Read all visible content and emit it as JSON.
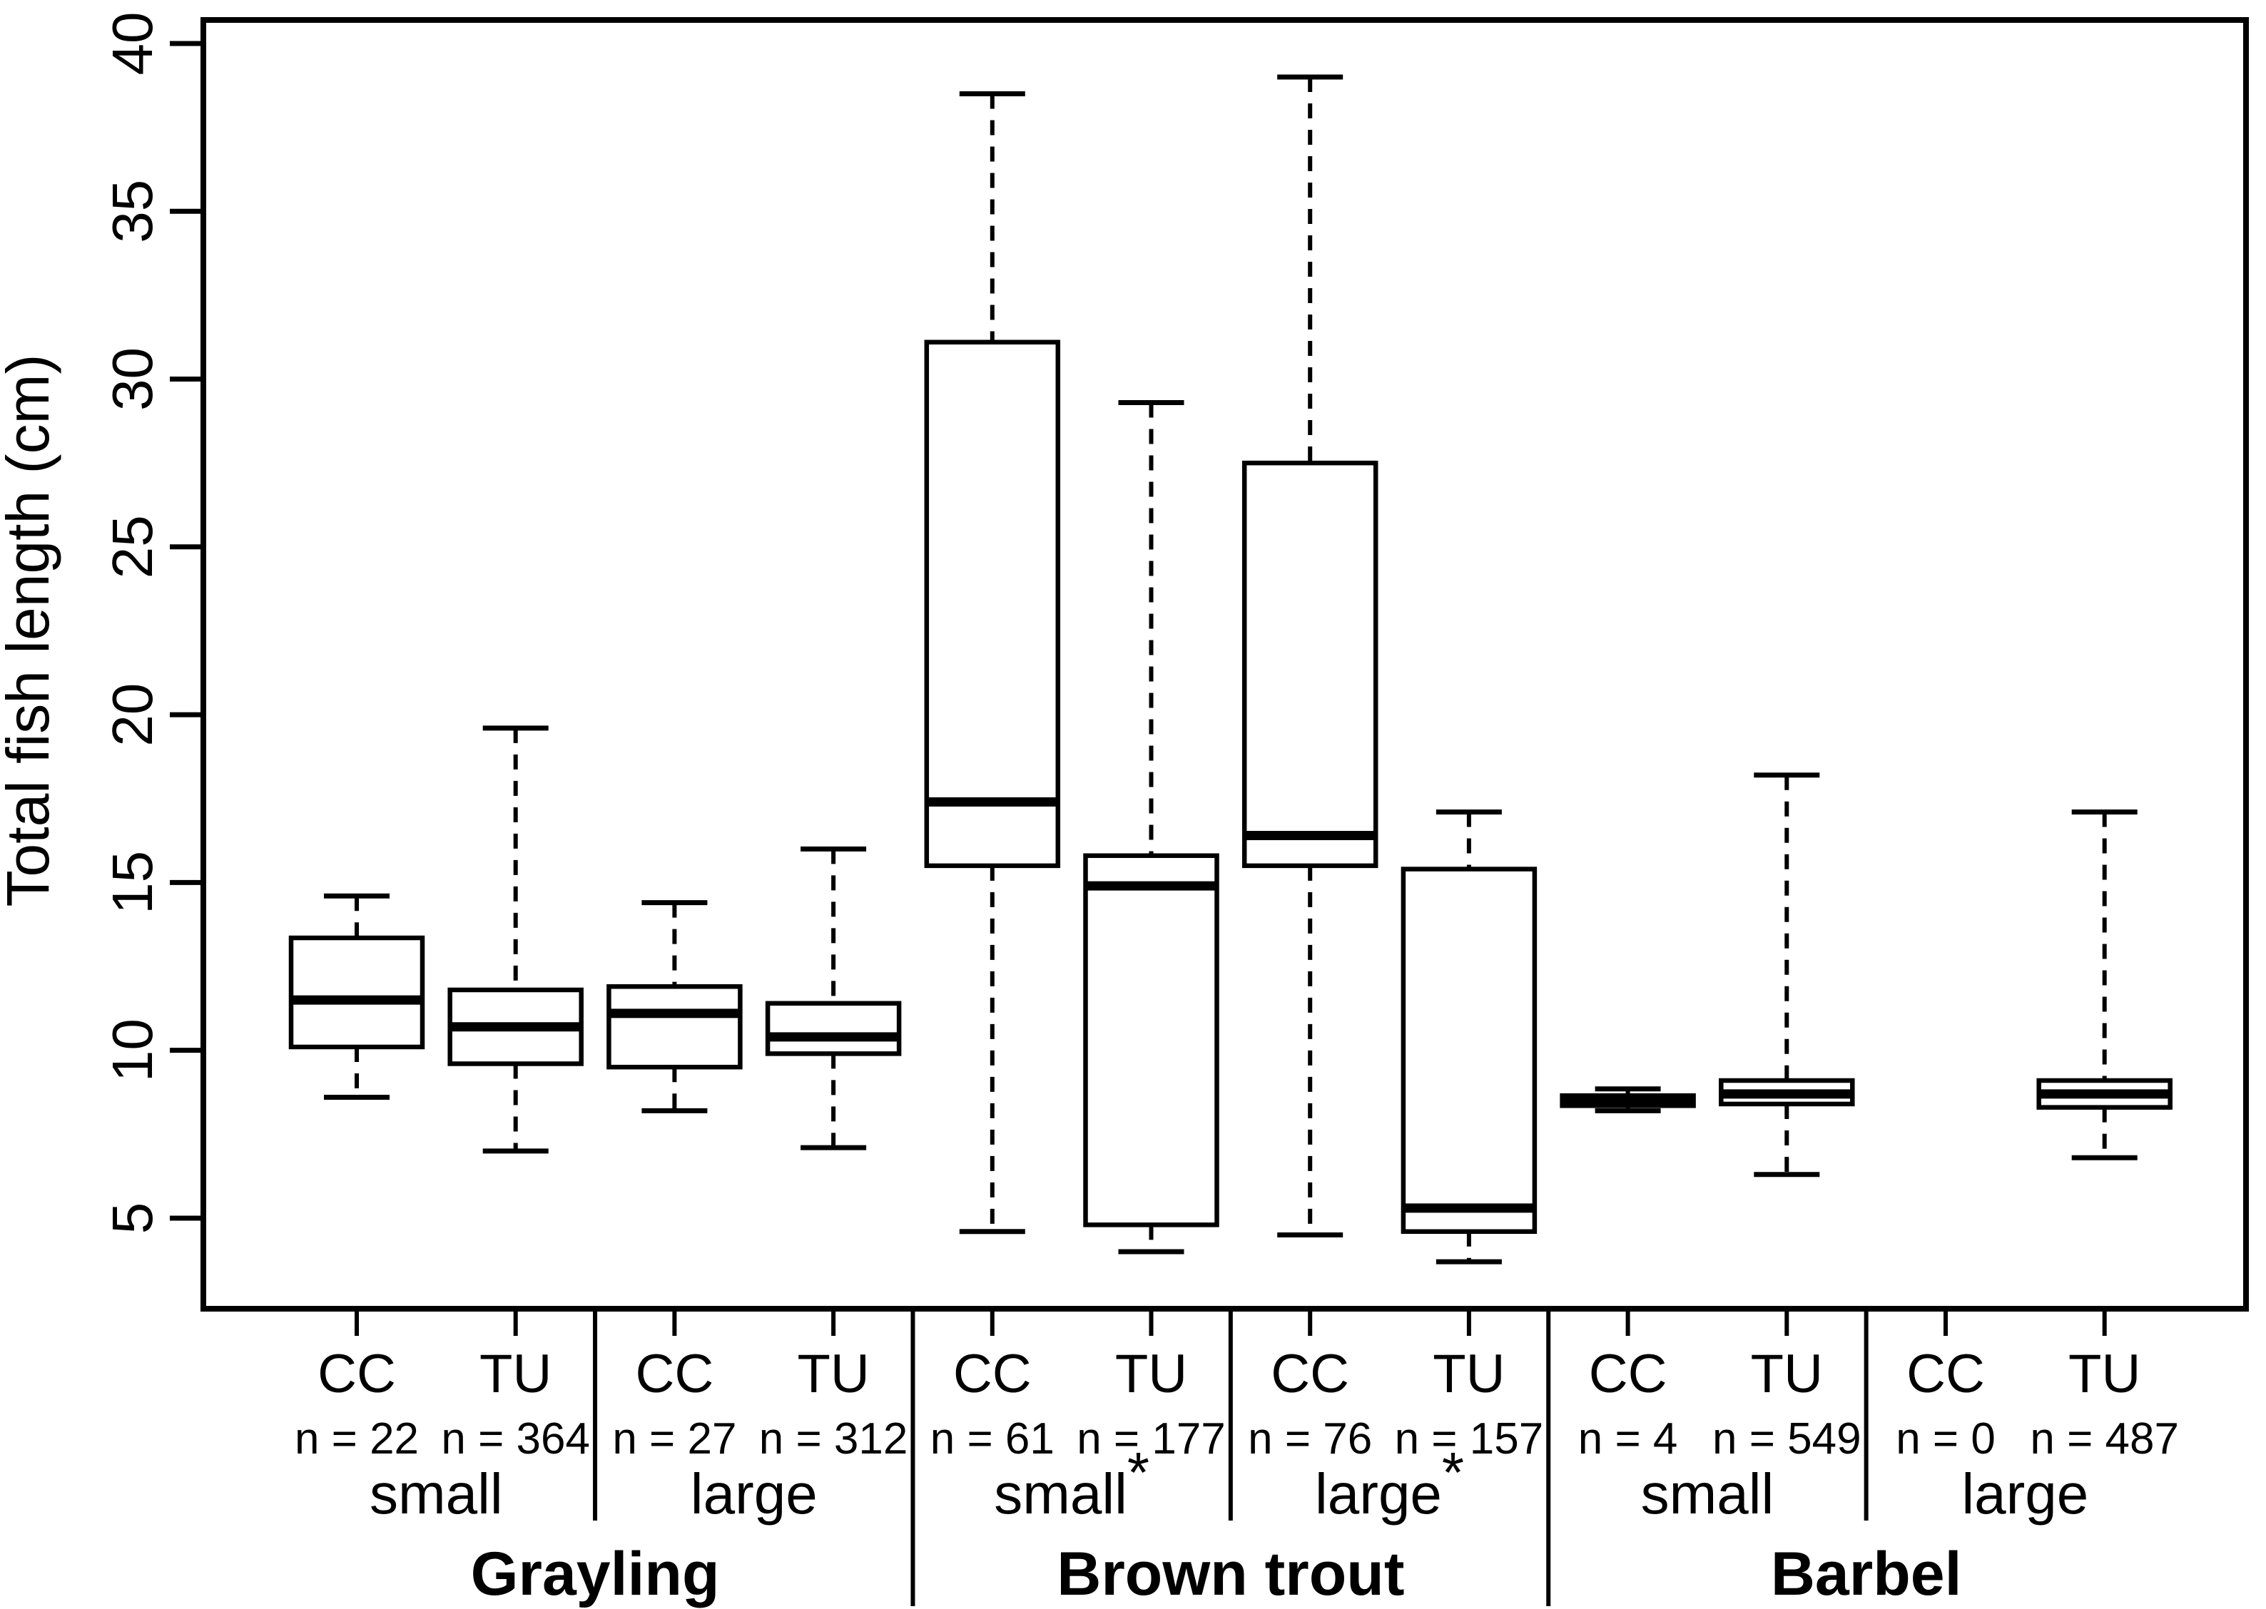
{
  "chart_data": {
    "type": "boxplot",
    "title": "",
    "xlabel": "",
    "ylabel": "Total fish length (cm)",
    "ylim": [
      2.3,
      40.7
    ],
    "yticks": [
      5,
      10,
      15,
      20,
      25,
      30,
      35,
      40
    ],
    "grid": false,
    "legend": null,
    "colors": {
      "foreground": "#000000",
      "background": "#ffffff"
    },
    "columns": [
      {
        "species": "Grayling",
        "size": "small",
        "treatment": "CC",
        "n_label": "n = 22",
        "n": 22,
        "stats": {
          "lo": 8.6,
          "q1": 10.1,
          "med": 11.5,
          "q3": 13.35,
          "hi": 14.6
        }
      },
      {
        "species": "Grayling",
        "size": "small",
        "treatment": "TU",
        "n_label": "n = 364",
        "n": 364,
        "stats": {
          "lo": 7.0,
          "q1": 9.6,
          "med": 10.7,
          "q3": 11.8,
          "hi": 19.6
        }
      },
      {
        "species": "Grayling",
        "size": "large",
        "treatment": "CC",
        "n_label": "n = 27",
        "n": 27,
        "stats": {
          "lo": 8.2,
          "q1": 9.5,
          "med": 11.1,
          "q3": 11.9,
          "hi": 14.4
        }
      },
      {
        "species": "Grayling",
        "size": "large",
        "treatment": "TU",
        "n_label": "n = 312",
        "n": 312,
        "stats": {
          "lo": 7.1,
          "q1": 9.9,
          "med": 10.4,
          "q3": 11.4,
          "hi": 16.0
        }
      },
      {
        "species": "Brown trout",
        "size": "small",
        "treatment": "CC",
        "n_label": "n = 61",
        "n": 61,
        "stats": {
          "lo": 4.6,
          "q1": 15.5,
          "med": 17.4,
          "q3": 31.1,
          "hi": 38.5
        }
      },
      {
        "species": "Brown trout",
        "size": "small",
        "treatment": "TU",
        "n_label": "n = 177",
        "n": 177,
        "stats": {
          "lo": 4.0,
          "q1": 4.8,
          "med": 14.9,
          "q3": 15.8,
          "hi": 29.3
        }
      },
      {
        "species": "Brown trout",
        "size": "large",
        "treatment": "CC",
        "n_label": "n = 76",
        "n": 76,
        "stats": {
          "lo": 4.5,
          "q1": 15.5,
          "med": 16.4,
          "q3": 27.5,
          "hi": 39.0
        }
      },
      {
        "species": "Brown trout",
        "size": "large",
        "treatment": "TU",
        "n_label": "n = 157",
        "n": 157,
        "stats": {
          "lo": 3.7,
          "q1": 4.6,
          "med": 5.3,
          "q3": 15.4,
          "hi": 17.1
        }
      },
      {
        "species": "Barbel",
        "size": "small",
        "treatment": "CC",
        "n_label": "n = 4",
        "n": 4,
        "stats": {
          "lo": 8.2,
          "q1": 8.35,
          "med": 8.5,
          "q3": 8.65,
          "hi": 8.85
        }
      },
      {
        "species": "Barbel",
        "size": "small",
        "treatment": "TU",
        "n_label": "n = 549",
        "n": 549,
        "stats": {
          "lo": 6.3,
          "q1": 8.4,
          "med": 8.7,
          "q3": 9.1,
          "hi": 18.2
        }
      },
      {
        "species": "Barbel",
        "size": "large",
        "treatment": "CC",
        "n_label": "n = 0",
        "n": 0,
        "stats": null
      },
      {
        "species": "Barbel",
        "size": "large",
        "treatment": "TU",
        "n_label": "n = 487",
        "n": 487,
        "stats": {
          "lo": 6.8,
          "q1": 8.3,
          "med": 8.7,
          "q3": 9.1,
          "hi": 17.1
        }
      }
    ],
    "size_groups": [
      {
        "label": "small",
        "star": "",
        "col_span": [
          0,
          1
        ]
      },
      {
        "label": "large",
        "star": "",
        "col_span": [
          2,
          3
        ]
      },
      {
        "label": "small",
        "star": "*",
        "col_span": [
          4,
          5
        ]
      },
      {
        "label": "large",
        "star": "*",
        "col_span": [
          6,
          7
        ]
      },
      {
        "label": "small",
        "star": "",
        "col_span": [
          8,
          9
        ]
      },
      {
        "label": "large",
        "star": "",
        "col_span": [
          10,
          11
        ]
      }
    ],
    "species_groups": [
      {
        "label": "Grayling",
        "col_span": [
          0,
          3
        ]
      },
      {
        "label": "Brown trout",
        "col_span": [
          4,
          7
        ]
      },
      {
        "label": "Barbel",
        "col_span": [
          8,
          11
        ]
      }
    ]
  }
}
